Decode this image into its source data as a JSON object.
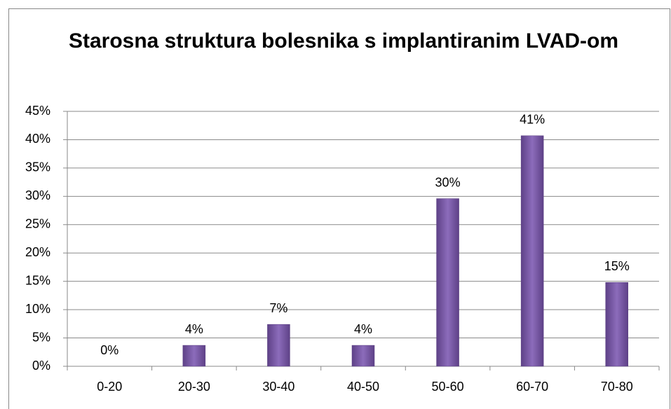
{
  "chart_data": {
    "type": "bar",
    "title": "Starosna struktura bolesnika s implantiranim LVAD-om",
    "categories": [
      "0-20",
      "20-30",
      "30-40",
      "40-50",
      "50-60",
      "60-70",
      "70-80"
    ],
    "values": [
      0,
      3.7,
      7.4,
      3.7,
      29.6,
      40.7,
      14.8
    ],
    "value_labels": [
      "0%",
      "4%",
      "7%",
      "4%",
      "30%",
      "41%",
      "15%"
    ],
    "color": "#7b5aa8",
    "ylim": [
      0,
      45
    ],
    "yticks": [
      {
        "value": 0,
        "label": "0%"
      },
      {
        "value": 5,
        "label": "5%"
      },
      {
        "value": 10,
        "label": "10%"
      },
      {
        "value": 15,
        "label": "15%"
      },
      {
        "value": 20,
        "label": "20%"
      },
      {
        "value": 25,
        "label": "25%"
      },
      {
        "value": 30,
        "label": "30%"
      },
      {
        "value": 35,
        "label": "35%"
      },
      {
        "value": 40,
        "label": "40%"
      },
      {
        "value": 45,
        "label": "45%"
      }
    ],
    "grid": true
  }
}
